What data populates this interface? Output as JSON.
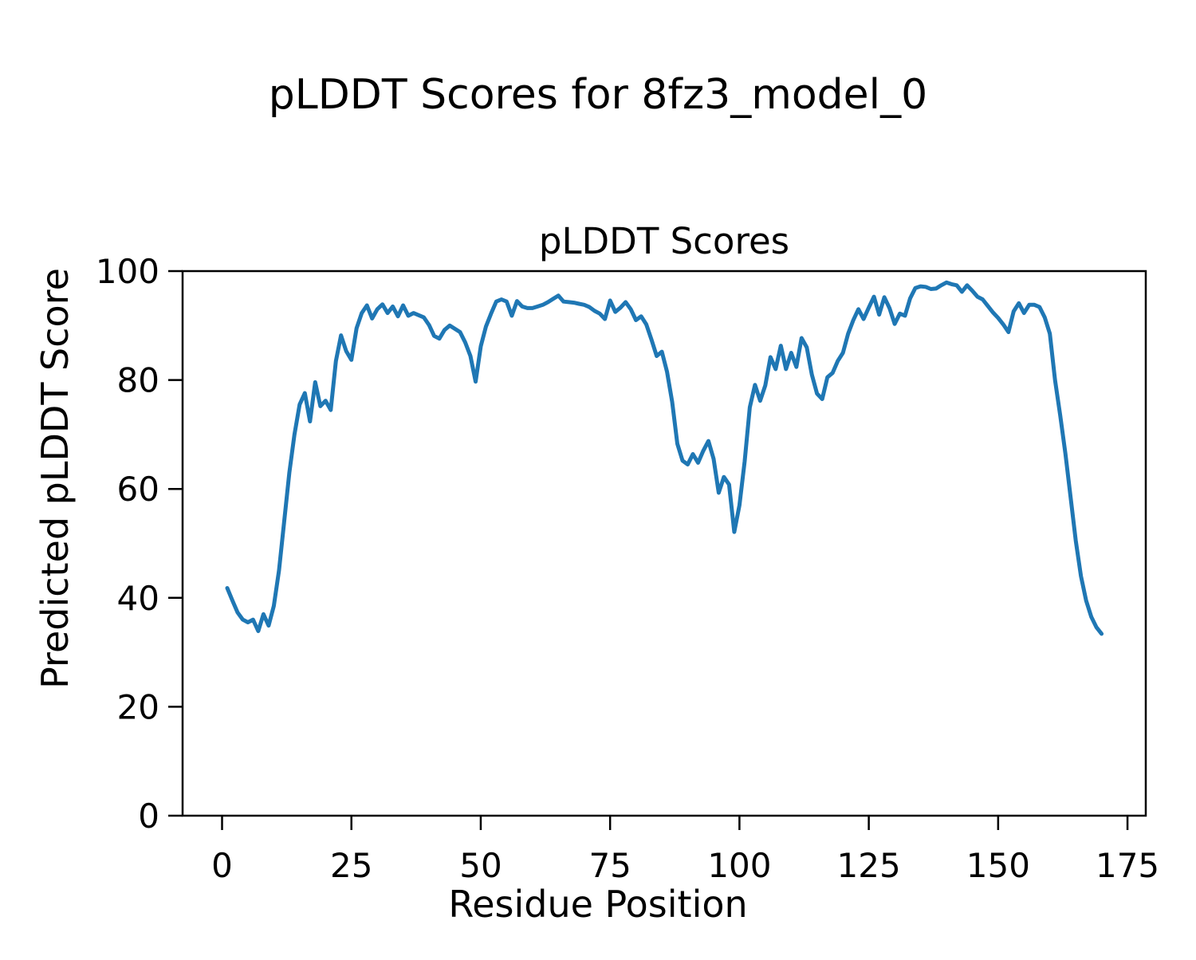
{
  "figure": {
    "suptitle": "pLDDT Scores for 8fz3_model_0",
    "background_color": "#ffffff",
    "text_color": "#000000"
  },
  "axes": {
    "title": "pLDDT Scores",
    "xlabel": "Residue Position",
    "ylabel": "Predicted pLDDT Score"
  },
  "chart_data": {
    "type": "line",
    "title": "pLDDT Scores",
    "suptitle": "pLDDT Scores for 8fz3_model_0",
    "xlabel": "Residue Position",
    "ylabel": "Predicted pLDDT Score",
    "grid": false,
    "legend_position": "none",
    "line_color": "#1f77b4",
    "line_width": 5,
    "xlim": [
      -7.6,
      178.5
    ],
    "ylim": [
      0,
      100
    ],
    "x_ticks": [
      0,
      25,
      50,
      75,
      100,
      125,
      150,
      175
    ],
    "y_ticks": [
      0,
      20,
      40,
      60,
      80,
      100
    ],
    "x_start": 1,
    "x_step": 1,
    "series_name": "pLDDT per residue",
    "values": [
      41.8,
      39.5,
      37.3,
      36.0,
      35.5,
      36.0,
      33.9,
      37.0,
      34.9,
      38.5,
      45.0,
      54.0,
      63.0,
      70.0,
      75.5,
      77.6,
      72.4,
      79.6,
      75.2,
      76.2,
      74.5,
      83.5,
      88.2,
      85.3,
      83.7,
      89.5,
      92.3,
      93.7,
      91.3,
      93.0,
      93.9,
      92.3,
      93.5,
      91.7,
      93.7,
      91.8,
      92.3,
      91.9,
      91.5,
      90.1,
      88.1,
      87.6,
      89.2,
      90.0,
      89.4,
      88.8,
      86.9,
      84.4,
      79.7,
      86.2,
      89.8,
      92.2,
      94.4,
      94.8,
      94.4,
      91.8,
      94.5,
      93.5,
      93.2,
      93.2,
      93.5,
      93.8,
      94.3,
      94.9,
      95.5,
      94.4,
      94.3,
      94.2,
      94.0,
      93.8,
      93.4,
      92.7,
      92.2,
      91.2,
      94.6,
      92.5,
      93.3,
      94.3,
      93.0,
      91.0,
      91.7,
      90.2,
      87.4,
      84.4,
      85.2,
      81.5,
      76.0,
      68.3,
      65.2,
      64.5,
      66.4,
      64.8,
      67.0,
      68.8,
      65.5,
      59.3,
      62.2,
      60.8,
      52.1,
      57.0,
      65.0,
      75.0,
      79.1,
      76.2,
      79.0,
      84.2,
      82.0,
      86.3,
      82.0,
      85.0,
      82.4,
      87.7,
      86.0,
      81.0,
      77.5,
      76.5,
      80.5,
      81.3,
      83.5,
      85.0,
      88.5,
      91.0,
      93.0,
      91.2,
      93.3,
      95.3,
      92.0,
      95.2,
      93.2,
      90.3,
      92.2,
      91.8,
      95.0,
      96.9,
      97.2,
      97.1,
      96.7,
      96.8,
      97.4,
      97.9,
      97.6,
      97.4,
      96.2,
      97.4,
      96.4,
      95.3,
      94.8,
      93.6,
      92.4,
      91.4,
      90.2,
      88.8,
      92.6,
      94.1,
      92.3,
      93.8,
      93.8,
      93.4,
      91.5,
      88.5,
      80.0,
      73.5,
      66.5,
      58.5,
      50.5,
      44.0,
      39.5,
      36.5,
      34.6,
      33.4
    ]
  }
}
